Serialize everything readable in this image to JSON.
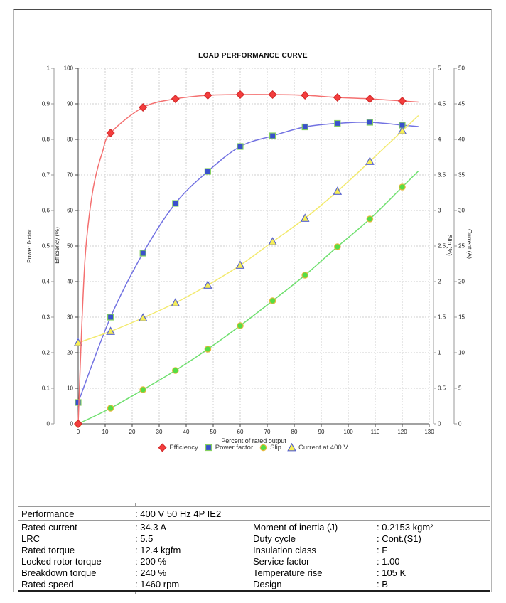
{
  "chart_data": {
    "type": "line",
    "title": "LOAD PERFORMANCE CURVE",
    "xlabel": "Percent of rated output",
    "grid": true,
    "legend_position": "bottom",
    "x_axis": {
      "min": 0,
      "max": 130,
      "step": 10
    },
    "axes": [
      {
        "id": "power_factor",
        "label": "Power factor",
        "min": 0,
        "max": 1,
        "step": 0.1,
        "side": "left-outer"
      },
      {
        "id": "efficiency",
        "label": "Efficiency (%)",
        "min": 0,
        "max": 100,
        "step": 10,
        "side": "left-inner"
      },
      {
        "id": "slip",
        "label": "Slip (%)",
        "min": 0,
        "max": 5,
        "step": 0.5,
        "side": "right-inner"
      },
      {
        "id": "current",
        "label": "Current (A)",
        "min": 0,
        "max": 50,
        "step": 5,
        "side": "right-outer"
      }
    ],
    "x": [
      0,
      12,
      24,
      36,
      48,
      60,
      72,
      84,
      96,
      108,
      120
    ],
    "series": [
      {
        "name": "Efficiency",
        "axis": "efficiency",
        "marker": "diamond",
        "marker_color": "#f43d3d",
        "marker_stroke": "#d32b2b",
        "line_color": "#f47070",
        "values": [
          0,
          81.8,
          89.0,
          91.4,
          92.4,
          92.6,
          92.6,
          92.4,
          91.8,
          91.4,
          90.8
        ],
        "curve_lead_in": [
          [
            1.2,
            25
          ],
          [
            2.5,
            46
          ],
          [
            4,
            58
          ],
          [
            6,
            68
          ],
          [
            9,
            76.5
          ]
        ]
      },
      {
        "name": "Power factor",
        "axis": "power_factor",
        "marker": "square",
        "marker_color": "#3a50cc",
        "marker_stroke": "#86d161",
        "line_color": "#7272e2",
        "values": [
          0.06,
          0.3,
          0.48,
          0.62,
          0.71,
          0.78,
          0.81,
          0.835,
          0.845,
          0.848,
          0.84
        ],
        "curve_lead_in": []
      },
      {
        "name": "Slip",
        "axis": "slip",
        "marker": "circle",
        "marker_color": "#55dd44",
        "marker_stroke": "#e8b93e",
        "line_color": "#70e070",
        "values": [
          0,
          0.22,
          0.48,
          0.75,
          1.05,
          1.38,
          1.73,
          2.09,
          2.49,
          2.88,
          3.33
        ],
        "curve_lead_in": []
      },
      {
        "name": "Current at 400 V",
        "axis": "current",
        "marker": "triangle",
        "marker_color": "#f6ee55",
        "marker_stroke": "#5863cf",
        "line_color": "#f3ea6e",
        "values": [
          11.4,
          13.0,
          14.9,
          17.0,
          19.5,
          22.3,
          25.6,
          28.9,
          32.7,
          36.9,
          41.2
        ],
        "curve_lead_in": []
      }
    ],
    "colors": {
      "grid": "#cfcfcf",
      "axis": "#444444",
      "sub_axis": "#999999",
      "tick_text": "#222222"
    }
  },
  "spec_table": {
    "performance": {
      "label": "Performance",
      "value": ": 400 V 50 Hz 4P IE2"
    },
    "left_rows": [
      {
        "label": "Rated current",
        "value": ": 34.3 A"
      },
      {
        "label": "LRC",
        "value": ": 5.5"
      },
      {
        "label": "Rated torque",
        "value": ": 12.4 kgfm"
      },
      {
        "label": "Locked rotor torque",
        "value": ": 200 %"
      },
      {
        "label": "Breakdown torque",
        "value": ": 240 %"
      },
      {
        "label": "Rated speed",
        "value": ": 1460 rpm"
      }
    ],
    "right_rows": [
      {
        "label": "Moment of inertia (J)",
        "value": ": 0.2153 kgm²"
      },
      {
        "label": "Duty cycle",
        "value": ": Cont.(S1)"
      },
      {
        "label": "Insulation class",
        "value": ": F"
      },
      {
        "label": "Service factor",
        "value": ": 1.00"
      },
      {
        "label": "Temperature rise",
        "value": ": 105 K"
      },
      {
        "label": "Design",
        "value": ": B"
      }
    ]
  }
}
